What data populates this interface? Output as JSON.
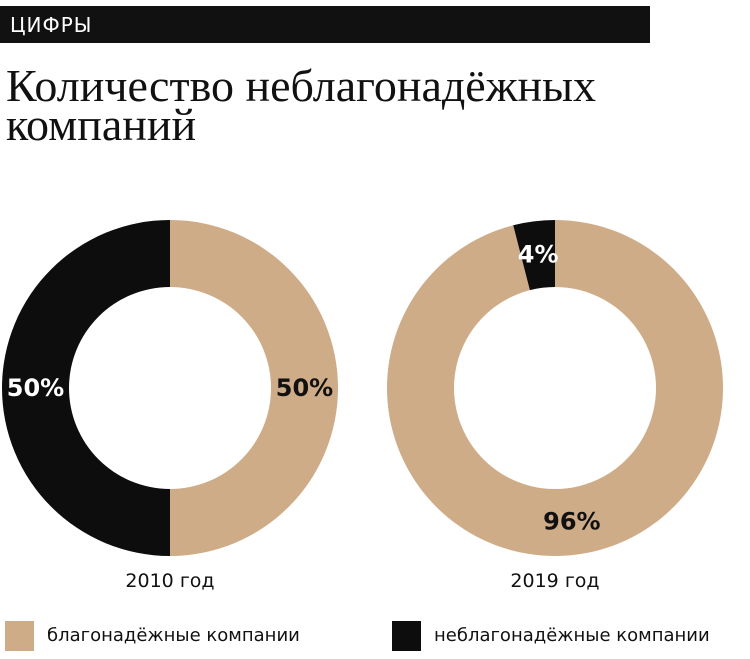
{
  "header": {
    "section_label": "ЦИФРЫ"
  },
  "title": "Количество неблагонадёжных компаний",
  "colors": {
    "reliable": "#cfac88",
    "unreliable": "#0d0d0d",
    "bar": "#111111"
  },
  "legend": {
    "reliable_label": "благонадёжные компании",
    "unreliable_label": "неблагонадёжные компании"
  },
  "chart_data": [
    {
      "type": "pie",
      "subtype": "donut",
      "title": "2010 год",
      "slices": [
        {
          "label": "благонадёжные компании",
          "value": 50,
          "display": "50%"
        },
        {
          "label": "неблагонадёжные компании",
          "value": 50,
          "display": "50%"
        }
      ]
    },
    {
      "type": "pie",
      "subtype": "donut",
      "title": "2019 год",
      "slices": [
        {
          "label": "благонадёжные компании",
          "value": 96,
          "display": "96%"
        },
        {
          "label": "неблагонадёжные компании",
          "value": 4,
          "display": "4%"
        }
      ]
    }
  ]
}
